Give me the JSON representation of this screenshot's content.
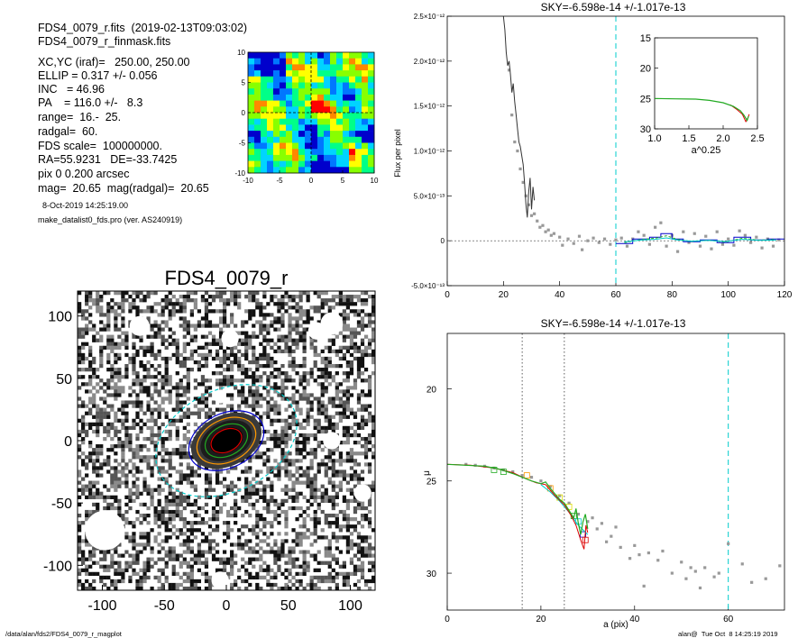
{
  "header": {
    "lines": [
      "FDS4_0079_r.fits  (2019-02-13T09:03:02)",
      "FDS4_0079_r_finmask.fits",
      "XC,YC (iraf)=   250.00, 250.00",
      "ELLIP = 0.317 +/- 0.056",
      "INC   = 46.96",
      "PA    = 116.0 +/-   8.3",
      "range=  16.-  25.",
      "radgal=  60.",
      "FDS scale=  100000000.",
      "RA=55.9231   DE=-33.7425",
      "pix 0 0.200 arcsec",
      "mag=  20.65  mag(radgal)=  20.65"
    ],
    "date": "8-Oct-2019 14:25:19.00",
    "program": "make_datalist0_fds.pro (ver. AS240919)"
  },
  "footer": {
    "path": "/data/alan/fds2/FDS4_0079_r_magplot",
    "stamp": "alan@  Tue Oct  8 14:25:19 2019"
  },
  "colors": {
    "green": "#22aa22",
    "red": "#dd0000",
    "blue": "#0000cc",
    "cyan": "#00cccc",
    "orange": "#ff9900",
    "yellow": "#dddd00",
    "gray": "#999999"
  },
  "chart_data": [
    {
      "id": "residual-map",
      "type": "heatmap",
      "title": "",
      "xlim": [
        -10,
        10
      ],
      "ylim": [
        -10,
        10
      ],
      "x_ticks": [
        "-10",
        "-5",
        "0",
        "5",
        "10"
      ],
      "y_ticks": [
        "-10",
        "-5",
        "0",
        "5",
        "10"
      ],
      "colormap": [
        "#0000cc",
        "#0077ff",
        "#00d4ff",
        "#00ff88",
        "#88ff00",
        "#ffff00",
        "#ff8800",
        "#ff0000"
      ]
    },
    {
      "id": "galaxy-image",
      "type": "scatter",
      "title": "FDS4_0079_r",
      "xlim": [
        -120,
        120
      ],
      "ylim": [
        -120,
        120
      ],
      "x_ticks": [
        "-100",
        "-50",
        "0",
        "50",
        "100"
      ],
      "y_ticks": [
        "-100",
        "-50",
        "0",
        "50",
        "100"
      ],
      "masks": [
        {
          "x": 3,
          "y": 82,
          "r": 7
        },
        {
          "x": -70,
          "y": 92,
          "r": 8
        },
        {
          "x": 73,
          "y": 88,
          "r": 7
        },
        {
          "x": 85,
          "y": 94,
          "r": 9
        },
        {
          "x": -5,
          "y": 35,
          "r": 5
        },
        {
          "x": 85,
          "y": 0,
          "r": 7
        },
        {
          "x": 110,
          "y": -42,
          "r": 7
        },
        {
          "x": -98,
          "y": -72,
          "r": 16
        },
        {
          "x": -5,
          "y": -112,
          "r": 7
        }
      ],
      "ellipses": [
        {
          "a": 13,
          "color": "#dd0000"
        },
        {
          "a": 18,
          "color": "#22aa22"
        },
        {
          "a": 25,
          "color": "#ff9900"
        },
        {
          "a": 32,
          "color": "#0000cc"
        },
        {
          "a": 60,
          "color": "#00cccc"
        }
      ],
      "ellipse_axis_ratio": 0.683,
      "ellipse_pa_deg": 116.0
    },
    {
      "id": "sky-profile",
      "type": "line",
      "title": "SKY=-6.598e-14 +/-1.017e-13",
      "xlabel": "",
      "ylabel": "Flux per pixel",
      "xlim": [
        0,
        120
      ],
      "ylim": [
        -5e-13,
        2.5e-12
      ],
      "x_ticks": [
        "0",
        "20",
        "40",
        "60",
        "80",
        "100",
        "120"
      ],
      "y_tick_values": [
        -5e-13,
        0,
        5e-13,
        1e-12,
        1.5e-12,
        2e-12,
        2.5e-12
      ],
      "y_ticks": [
        "-5.0×10⁻¹³",
        "0",
        "5.0×10⁻¹³",
        "1.0×10⁻¹²",
        "1.5×10⁻¹²",
        "2.0×10⁻¹²",
        "2.5×10⁻¹²"
      ],
      "vline_x": 60,
      "profile": [
        {
          "x": 20,
          "y": 2.5e-12
        },
        {
          "x": 20.5,
          "y": 2.35e-12
        },
        {
          "x": 21,
          "y": 2.1e-12
        },
        {
          "x": 21.5,
          "y": 1.95e-12
        },
        {
          "x": 22,
          "y": 2e-12
        },
        {
          "x": 22.5,
          "y": 1.85e-12
        },
        {
          "x": 23,
          "y": 1.65e-12
        },
        {
          "x": 23.5,
          "y": 1.75e-12
        },
        {
          "x": 24,
          "y": 1.55e-12
        },
        {
          "x": 24.5,
          "y": 1.4e-12
        },
        {
          "x": 25,
          "y": 1.25e-12
        },
        {
          "x": 25.5,
          "y": 1.1e-12
        },
        {
          "x": 26,
          "y": 1.05e-12
        },
        {
          "x": 26.5,
          "y": 9.5e-13
        },
        {
          "x": 27,
          "y": 8.5e-13
        },
        {
          "x": 27.5,
          "y": 6.5e-13
        },
        {
          "x": 28,
          "y": 4e-13
        },
        {
          "x": 28.5,
          "y": 2.6e-13
        },
        {
          "x": 29,
          "y": 5.5e-13
        },
        {
          "x": 29.5,
          "y": 7e-13
        },
        {
          "x": 30,
          "y": 3.5e-13
        },
        {
          "x": 30.5,
          "y": 6e-13
        },
        {
          "x": 31,
          "y": 4.5e-13
        }
      ],
      "points": [
        {
          "x": 22,
          "y": 1.9e-12
        },
        {
          "x": 23,
          "y": 1.4e-12
        },
        {
          "x": 24,
          "y": 1.1e-12
        },
        {
          "x": 25,
          "y": 1e-12
        },
        {
          "x": 26,
          "y": 8e-13
        },
        {
          "x": 27,
          "y": 6.5e-13
        },
        {
          "x": 28,
          "y": 5e-13
        },
        {
          "x": 29,
          "y": 4e-13
        },
        {
          "x": 30,
          "y": 2.8e-13
        },
        {
          "x": 31,
          "y": 3e-13
        },
        {
          "x": 32,
          "y": 2.2e-13
        },
        {
          "x": 33,
          "y": 1.5e-13
        },
        {
          "x": 34,
          "y": 1.7e-13
        },
        {
          "x": 35,
          "y": 1e-13
        },
        {
          "x": 36,
          "y": 1.2e-13
        },
        {
          "x": 37,
          "y": 6e-14
        },
        {
          "x": 38,
          "y": 8e-14
        },
        {
          "x": 40,
          "y": 4e-14
        },
        {
          "x": 41,
          "y": -5e-14
        },
        {
          "x": 43,
          "y": 2e-14
        },
        {
          "x": 45,
          "y": -3e-14
        },
        {
          "x": 47,
          "y": 5e-14
        },
        {
          "x": 48,
          "y": -1e-13
        },
        {
          "x": 50,
          "y": 0
        },
        {
          "x": 52,
          "y": 3e-14
        },
        {
          "x": 54,
          "y": -2e-14
        },
        {
          "x": 56,
          "y": 2e-14
        },
        {
          "x": 58,
          "y": -4e-14
        },
        {
          "x": 60,
          "y": 1e-14
        },
        {
          "x": 62,
          "y": 3e-14
        },
        {
          "x": 64,
          "y": -6e-14
        },
        {
          "x": 66,
          "y": 2e-14
        },
        {
          "x": 68,
          "y": 1e-13
        },
        {
          "x": 70,
          "y": 6e-14
        },
        {
          "x": 72,
          "y": -4e-14
        },
        {
          "x": 74,
          "y": 1.5e-13
        },
        {
          "x": 76,
          "y": 2e-13
        },
        {
          "x": 78,
          "y": -6e-14
        },
        {
          "x": 80,
          "y": 6e-14
        },
        {
          "x": 82,
          "y": -1.2e-13
        },
        {
          "x": 84,
          "y": 1e-13
        },
        {
          "x": 86,
          "y": -2e-14
        },
        {
          "x": 88,
          "y": 8e-14
        },
        {
          "x": 90,
          "y": -6e-14
        },
        {
          "x": 92,
          "y": 5e-14
        },
        {
          "x": 94,
          "y": -9e-14
        },
        {
          "x": 96,
          "y": 1e-13
        },
        {
          "x": 98,
          "y": -4e-14
        },
        {
          "x": 100,
          "y": 2e-14
        },
        {
          "x": 102,
          "y": -5e-14
        },
        {
          "x": 104,
          "y": 1.1e-13
        },
        {
          "x": 106,
          "y": 6e-14
        },
        {
          "x": 108,
          "y": -2e-14
        },
        {
          "x": 110,
          "y": 4e-14
        },
        {
          "x": 112,
          "y": -8e-14
        },
        {
          "x": 114,
          "y": 2e-14
        },
        {
          "x": 116,
          "y": -6e-14
        },
        {
          "x": 118,
          "y": 1e-14
        }
      ],
      "step_bins": [
        {
          "x0": 60,
          "x1": 66,
          "y": -3e-14
        },
        {
          "x0": 66,
          "x1": 72,
          "y": 2e-14
        },
        {
          "x0": 72,
          "x1": 76,
          "y": 4e-14
        },
        {
          "x0": 76,
          "x1": 80,
          "y": 8e-14
        },
        {
          "x0": 80,
          "x1": 84,
          "y": 2e-14
        },
        {
          "x0": 84,
          "x1": 90,
          "y": -1e-14
        },
        {
          "x0": 90,
          "x1": 96,
          "y": 1e-14
        },
        {
          "x0": 96,
          "x1": 102,
          "y": -2e-14
        },
        {
          "x0": 102,
          "x1": 108,
          "y": 4e-14
        },
        {
          "x0": 108,
          "x1": 114,
          "y": 1e-14
        },
        {
          "x0": 114,
          "x1": 120,
          "y": 2e-14
        }
      ],
      "inset": {
        "xlabel": "a^0.25",
        "xlim": [
          1.0,
          2.5
        ],
        "ylim": [
          15,
          30
        ],
        "y_reversed": true,
        "x_ticks": [
          "1.0",
          "1.5",
          "2.0",
          "2.5"
        ],
        "y_ticks": [
          "15",
          "20",
          "25",
          "30"
        ],
        "green": [
          {
            "x": 1.0,
            "y": 25.0
          },
          {
            "x": 1.3,
            "y": 25.05
          },
          {
            "x": 1.6,
            "y": 25.1
          },
          {
            "x": 1.8,
            "y": 25.3
          },
          {
            "x": 2.0,
            "y": 25.7
          },
          {
            "x": 2.15,
            "y": 26.3
          },
          {
            "x": 2.25,
            "y": 27.0
          },
          {
            "x": 2.3,
            "y": 27.7
          },
          {
            "x": 2.35,
            "y": 28.6
          },
          {
            "x": 2.37,
            "y": 27.9
          }
        ],
        "red": [
          {
            "x": 2.1,
            "y": 26.0
          },
          {
            "x": 2.2,
            "y": 26.8
          },
          {
            "x": 2.28,
            "y": 27.6
          },
          {
            "x": 2.33,
            "y": 28.8
          },
          {
            "x": 2.36,
            "y": 28.2
          },
          {
            "x": 2.38,
            "y": 27.6
          }
        ]
      }
    },
    {
      "id": "mu-profile",
      "type": "line",
      "title": "SKY=-6.598e-14 +/-1.017e-13",
      "xlabel": "a (pix)",
      "ylabel": "μ",
      "xlim": [
        0,
        72
      ],
      "ylim": [
        17,
        32
      ],
      "y_reversed": true,
      "x_ticks": [
        "0",
        "20",
        "40",
        "60"
      ],
      "y_tick_values": [
        20,
        25,
        30
      ],
      "y_ticks": [
        "20",
        "25",
        "30"
      ],
      "dotted_vlines": [
        16,
        25
      ],
      "dashed_vline": 60,
      "green": [
        {
          "x": 0,
          "y": 24.1
        },
        {
          "x": 4,
          "y": 24.15
        },
        {
          "x": 8,
          "y": 24.2
        },
        {
          "x": 11,
          "y": 24.35
        },
        {
          "x": 14,
          "y": 24.6
        },
        {
          "x": 16,
          "y": 24.8
        },
        {
          "x": 18,
          "y": 25.0
        },
        {
          "x": 20,
          "y": 25.15
        },
        {
          "x": 21,
          "y": 25.05
        },
        {
          "x": 22,
          "y": 25.4
        },
        {
          "x": 23,
          "y": 25.7
        },
        {
          "x": 24,
          "y": 26.0
        },
        {
          "x": 25,
          "y": 26.2
        },
        {
          "x": 26,
          "y": 26.6
        },
        {
          "x": 27,
          "y": 27.0
        },
        {
          "x": 27.5,
          "y": 26.5
        },
        {
          "x": 28,
          "y": 27.3
        },
        {
          "x": 28.5,
          "y": 27.9
        },
        {
          "x": 29,
          "y": 27.2
        },
        {
          "x": 29.5,
          "y": 26.8
        },
        {
          "x": 30,
          "y": 27.6
        }
      ],
      "red": [
        {
          "x": 0,
          "y": 24.1
        },
        {
          "x": 5,
          "y": 24.15
        },
        {
          "x": 10,
          "y": 24.3
        },
        {
          "x": 14,
          "y": 24.55
        },
        {
          "x": 17,
          "y": 24.9
        },
        {
          "x": 19,
          "y": 25.1
        },
        {
          "x": 21,
          "y": 25.2
        },
        {
          "x": 23,
          "y": 25.8
        },
        {
          "x": 25,
          "y": 26.3
        },
        {
          "x": 26.5,
          "y": 26.9
        },
        {
          "x": 27.5,
          "y": 27.4
        },
        {
          "x": 28.5,
          "y": 28.2
        },
        {
          "x": 29.2,
          "y": 28.7
        },
        {
          "x": 29.6,
          "y": 27.4
        },
        {
          "x": 30,
          "y": 27.8
        }
      ],
      "cyan": [
        {
          "x": 20,
          "y": 25.2
        },
        {
          "x": 22,
          "y": 25.6
        },
        {
          "x": 24,
          "y": 26.1
        },
        {
          "x": 26,
          "y": 26.7
        },
        {
          "x": 28,
          "y": 27.4
        },
        {
          "x": 30,
          "y": 27.9
        }
      ],
      "boxes": [
        {
          "x": 10,
          "y": 24.4,
          "color": "#22aa22"
        },
        {
          "x": 12,
          "y": 24.5,
          "color": "#22aa22"
        },
        {
          "x": 17,
          "y": 24.7,
          "color": "#ff9900"
        },
        {
          "x": 22,
          "y": 25.4,
          "color": "#ff9900"
        },
        {
          "x": 24,
          "y": 25.9,
          "color": "#dddd00"
        },
        {
          "x": 26,
          "y": 26.4,
          "color": "#dddd00"
        },
        {
          "x": 27,
          "y": 26.9,
          "color": "#22aa22"
        },
        {
          "x": 28,
          "y": 27.2,
          "color": "#00cccc"
        },
        {
          "x": 29,
          "y": 27.9,
          "color": "#0000cc"
        },
        {
          "x": 29.5,
          "y": 28.2,
          "color": "#dd0000"
        }
      ],
      "points": [
        {
          "x": 4,
          "y": 24.1
        },
        {
          "x": 6,
          "y": 24.15
        },
        {
          "x": 8,
          "y": 24.2
        },
        {
          "x": 10,
          "y": 24.3
        },
        {
          "x": 12,
          "y": 24.4
        },
        {
          "x": 14,
          "y": 24.5
        },
        {
          "x": 16,
          "y": 24.7
        },
        {
          "x": 18,
          "y": 24.8
        },
        {
          "x": 20,
          "y": 25.0
        },
        {
          "x": 22,
          "y": 25.3
        },
        {
          "x": 24,
          "y": 25.8
        },
        {
          "x": 26,
          "y": 26.2
        },
        {
          "x": 28,
          "y": 26.8
        },
        {
          "x": 30,
          "y": 27.2
        },
        {
          "x": 31,
          "y": 27.0
        },
        {
          "x": 32,
          "y": 27.6
        },
        {
          "x": 33,
          "y": 27.3
        },
        {
          "x": 34,
          "y": 28.3
        },
        {
          "x": 35,
          "y": 28.0
        },
        {
          "x": 36,
          "y": 27.5
        },
        {
          "x": 37,
          "y": 28.6
        },
        {
          "x": 39,
          "y": 29.2
        },
        {
          "x": 40,
          "y": 28.5
        },
        {
          "x": 41,
          "y": 29.0
        },
        {
          "x": 42,
          "y": 30.7
        },
        {
          "x": 43,
          "y": 28.9
        },
        {
          "x": 45,
          "y": 29.3
        },
        {
          "x": 46,
          "y": 28.8
        },
        {
          "x": 48,
          "y": 30.0
        },
        {
          "x": 50,
          "y": 29.4
        },
        {
          "x": 51,
          "y": 30.3
        },
        {
          "x": 52,
          "y": 29.7
        },
        {
          "x": 53,
          "y": 29.9
        },
        {
          "x": 54,
          "y": 30.8
        },
        {
          "x": 55,
          "y": 29.7
        },
        {
          "x": 57,
          "y": 30.2
        },
        {
          "x": 58,
          "y": 30.0
        },
        {
          "x": 60,
          "y": 28.4
        },
        {
          "x": 63,
          "y": 29.5
        },
        {
          "x": 65,
          "y": 30.5
        },
        {
          "x": 68,
          "y": 30.3
        },
        {
          "x": 71,
          "y": 29.6
        }
      ]
    }
  ]
}
